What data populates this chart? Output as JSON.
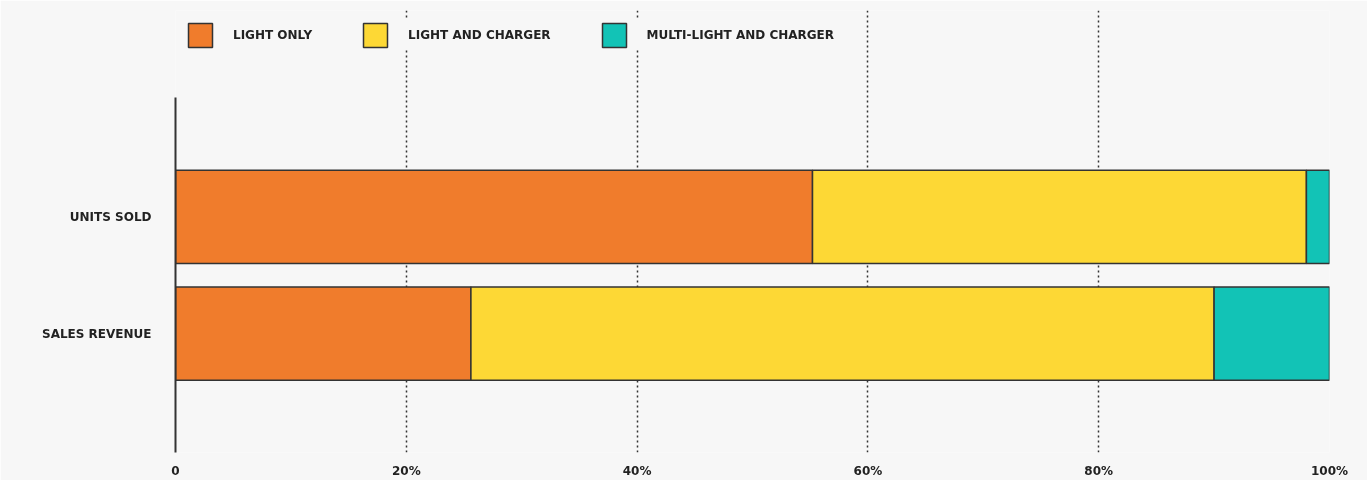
{
  "chart_data": {
    "type": "bar",
    "orientation": "horizontal",
    "stacked": true,
    "categories": [
      "UNITS SOLD",
      "SALES REVENUE"
    ],
    "series": [
      {
        "name": "LIGHT ONLY",
        "color": "#f07c2c",
        "values": [
          55.2,
          25.6
        ]
      },
      {
        "name": "LIGHT AND CHARGER",
        "color": "#fdd835",
        "values": [
          42.8,
          64.4
        ]
      },
      {
        "name": "MULTI-LIGHT AND CHARGER",
        "color": "#12c3b6",
        "values": [
          2.0,
          10.0
        ]
      }
    ],
    "xlim": [
      0,
      100
    ],
    "xticks": [
      0,
      {
        "value": 20,
        "label": "20%"
      },
      {
        "value": 40,
        "label": "40%"
      },
      {
        "value": 60,
        "label": "60%"
      },
      {
        "value": 80,
        "label": "80%"
      },
      {
        "value": 100,
        "label": "100%"
      }
    ],
    "grid": "x",
    "legend": "top"
  }
}
